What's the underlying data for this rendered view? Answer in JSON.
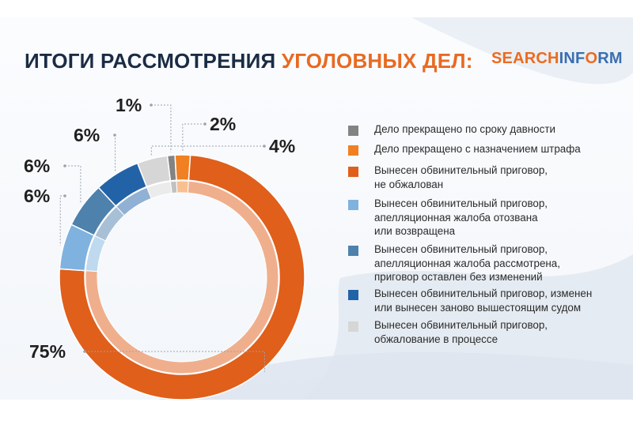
{
  "header": {
    "title_part1": "ИТОГИ РАССМОТРЕНИЯ",
    "title_part2": "УГОЛОВНЫХ ДЕЛ:",
    "logo_part1": "SEARCH",
    "logo_part2": "INF",
    "logo_part3": "O",
    "logo_part4": "RM"
  },
  "chart_data": {
    "type": "pie",
    "donut": true,
    "legend_placement": "right",
    "series": [
      {
        "name": "Дело прекращено по сроку давности",
        "value": 1,
        "label": "1%",
        "color": "#838383"
      },
      {
        "name": "Дело прекращено с назначением штрафа",
        "value": 2,
        "label": "2%",
        "color": "#f08021"
      },
      {
        "name": "Вынесен обвинительный приговор,\nне обжалован",
        "value": 75,
        "label": "75%",
        "color": "#df5f1b"
      },
      {
        "name": "Вынесен обвинительный приговор,\nапелляционная жалоба отозвана\nили возвращена",
        "value": 6,
        "label": "6%",
        "color": "#7fb2df"
      },
      {
        "name": "Вынесен обвинительный приговор,\nапелляционная жалоба рассмотрена,\nприговор оставлен без изменений",
        "value": 6,
        "label": "6%",
        "color": "#4e81ac"
      },
      {
        "name": "Вынесен обвинительный приговор, изменен\nили вынесен заново вышестоящим судом",
        "value": 6,
        "label": "6%",
        "color": "#2263a8"
      },
      {
        "name": "Вынесен обвинительный приговор,\nобжалование в процессе",
        "value": 4,
        "label": "4%",
        "color": "#d6d6d6"
      }
    ]
  }
}
